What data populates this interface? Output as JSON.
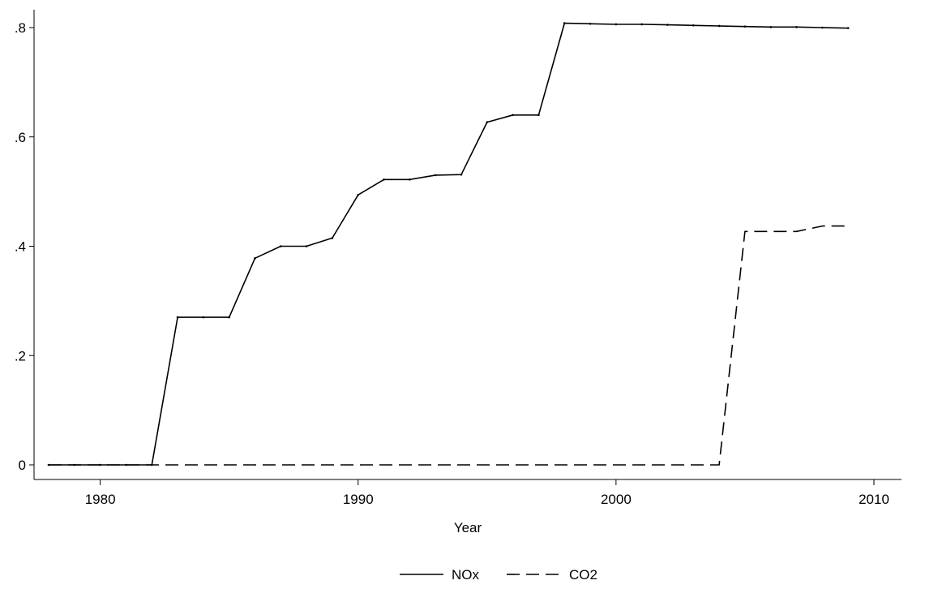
{
  "chart_data": {
    "type": "line",
    "title": "",
    "xlabel": "Year",
    "ylabel": "",
    "xlim": [
      1978,
      2010
    ],
    "ylim": [
      0,
      0.8
    ],
    "xticks": [
      1980,
      1990,
      2000,
      2010
    ],
    "xtick_labels": [
      "1980",
      "1990",
      "2000",
      "2010"
    ],
    "yticks": [
      0,
      0.2,
      0.4,
      0.6,
      0.8
    ],
    "ytick_labels": [
      "0",
      ".2",
      ".4",
      ".6",
      ".8"
    ],
    "grid": false,
    "legend_position": "bottom",
    "x": [
      1978,
      1979,
      1980,
      1981,
      1982,
      1983,
      1984,
      1985,
      1986,
      1987,
      1988,
      1989,
      1990,
      1991,
      1992,
      1993,
      1994,
      1995,
      1996,
      1997,
      1998,
      1999,
      2000,
      2001,
      2002,
      2003,
      2004,
      2005,
      2006,
      2007,
      2008,
      2009
    ],
    "series": [
      {
        "name": "NOx",
        "line_style": "solid",
        "color": "#000000",
        "values": [
          0,
          0,
          0,
          0,
          0,
          0.27,
          0.27,
          0.27,
          0.378,
          0.4,
          0.4,
          0.415,
          0.494,
          0.522,
          0.522,
          0.53,
          0.531,
          0.627,
          0.64,
          0.64,
          0.808,
          0.807,
          0.806,
          0.806,
          0.805,
          0.804,
          0.803,
          0.802,
          0.801,
          0.801,
          0.8,
          0.799
        ]
      },
      {
        "name": "CO2",
        "line_style": "dashed",
        "color": "#000000",
        "values": [
          0,
          0,
          0,
          0,
          0,
          0,
          0,
          0,
          0,
          0,
          0,
          0,
          0,
          0,
          0,
          0,
          0,
          0,
          0,
          0,
          0,
          0,
          0,
          0,
          0,
          0,
          0,
          0.427,
          0.427,
          0.427,
          0.437,
          0.437
        ]
      }
    ]
  }
}
